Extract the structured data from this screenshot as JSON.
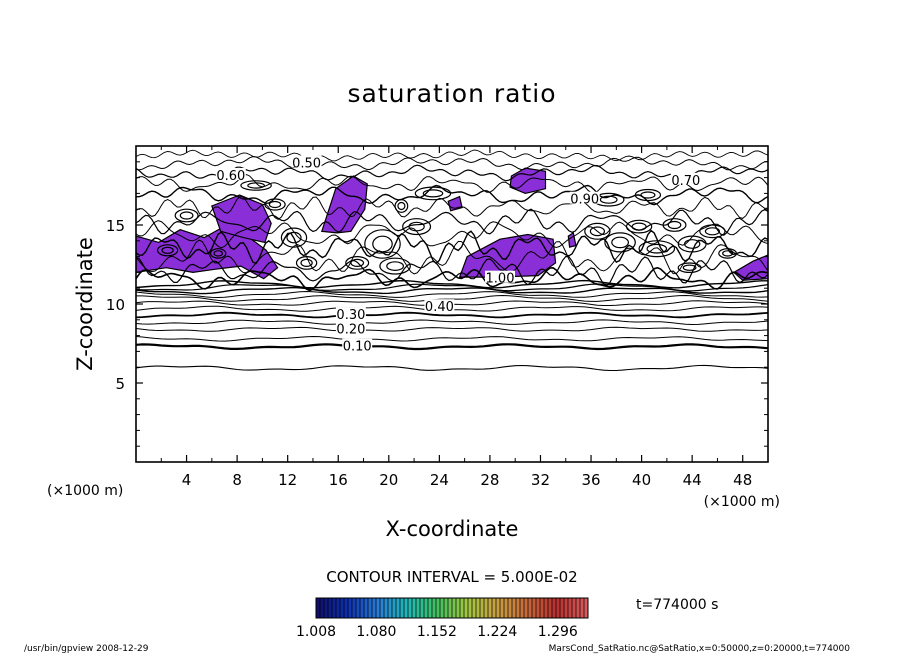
{
  "chart_data": {
    "type": "contour",
    "title": "saturation ratio",
    "xlabel": "X-coordinate",
    "ylabel": "Z-coordinate",
    "x_unit": "(×1000 m)",
    "y_unit": "(×1000 m)",
    "xlim": [
      0,
      50
    ],
    "ylim": [
      0,
      20
    ],
    "x_ticks": [
      "4",
      "8",
      "12",
      "16",
      "20",
      "24",
      "28",
      "32",
      "36",
      "40",
      "44",
      "48"
    ],
    "y_ticks": [
      "5",
      "10",
      "15"
    ],
    "contour_interval_text": "CONTOUR INTERVAL = 5.000E-02",
    "time_text": "t=774000 s",
    "contour_labels": [
      {
        "text": "0.10",
        "x": 17.5,
        "z": 7.3
      },
      {
        "text": "0.20",
        "x": 17.0,
        "z": 8.4
      },
      {
        "text": "0.30",
        "x": 17.0,
        "z": 9.3
      },
      {
        "text": "0.40",
        "x": 24.0,
        "z": 9.8
      },
      {
        "text": "1.00",
        "x": 28.8,
        "z": 11.6
      },
      {
        "text": "0.50",
        "x": 13.5,
        "z": 18.9
      },
      {
        "text": "0.60",
        "x": 7.5,
        "z": 18.1
      },
      {
        "text": "0.90",
        "x": 35.5,
        "z": 16.6
      },
      {
        "text": "0.70",
        "x": 43.5,
        "z": 17.8
      }
    ],
    "colorbar": {
      "min": 1.008,
      "max": 1.332,
      "tick_labels": [
        "1.008",
        "1.080",
        "1.152",
        "1.224",
        "1.296"
      ],
      "colors": [
        "#10106a",
        "#1030b0",
        "#2a7ad6",
        "#20b8b8",
        "#40c060",
        "#a0c840",
        "#c8a040",
        "#c86a3a",
        "#b83030",
        "#d85a5a"
      ]
    },
    "fill_color": "#8a2fd8"
  },
  "footer": {
    "left": "/usr/bin/gpview  2008-12-29",
    "right": "MarsCond_SatRatio.nc@SatRatio,x=0:50000,z=0:20000,t=774000"
  }
}
